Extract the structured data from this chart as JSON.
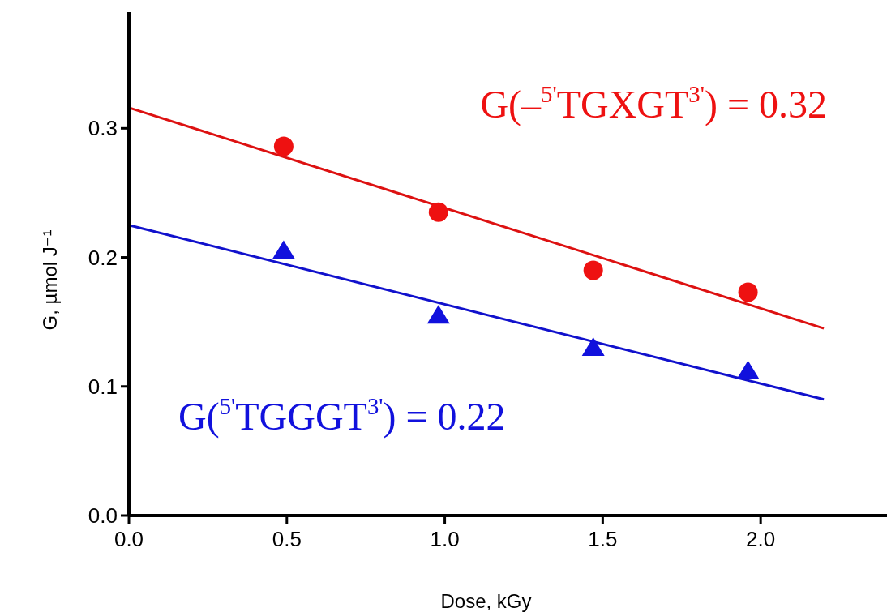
{
  "chart_data": {
    "type": "scatter",
    "xlabel": "Dose, kGy",
    "ylabel": "G, µmol J⁻¹",
    "xlim": [
      0,
      2.4
    ],
    "ylim": [
      0,
      0.39
    ],
    "xticks": [
      {
        "value": 0,
        "label": "0.0"
      },
      {
        "value": 0.5,
        "label": "0.5"
      },
      {
        "value": 1,
        "label": "1.0"
      },
      {
        "value": 1.5,
        "label": "1.5"
      },
      {
        "value": 2,
        "label": "2.0"
      }
    ],
    "yticks": [
      {
        "value": 0,
        "label": "0.0"
      },
      {
        "value": 0.1,
        "label": "0.1"
      },
      {
        "value": 0.2,
        "label": "0.2"
      },
      {
        "value": 0.3,
        "label": "0.3"
      }
    ],
    "grid": false,
    "series": [
      {
        "marker": "circle",
        "color": "#ee1111",
        "x": [
          0.49,
          0.98,
          1.47,
          1.96
        ],
        "values": [
          0.286,
          0.235,
          0.19,
          0.173
        ]
      },
      {
        "marker": "triangle",
        "color": "#1111dd",
        "x": [
          0.49,
          0.98,
          1.47,
          1.96
        ],
        "values": [
          0.205,
          0.155,
          0.13,
          0.112
        ]
      },
      {
        "type": "line",
        "color": "#dd1111",
        "x": [
          0,
          2.2
        ],
        "values": [
          0.316,
          0.145
        ]
      },
      {
        "type": "line",
        "color": "#1111cc",
        "x": [
          0,
          2.2
        ],
        "values": [
          0.225,
          0.09
        ]
      }
    ],
    "annotations": [
      "G(–$^{5'}$TGXGT$^{3'}$) = 0.32",
      "G($^{5'}$TGGGT$^{3'}$) = 0.22"
    ]
  }
}
